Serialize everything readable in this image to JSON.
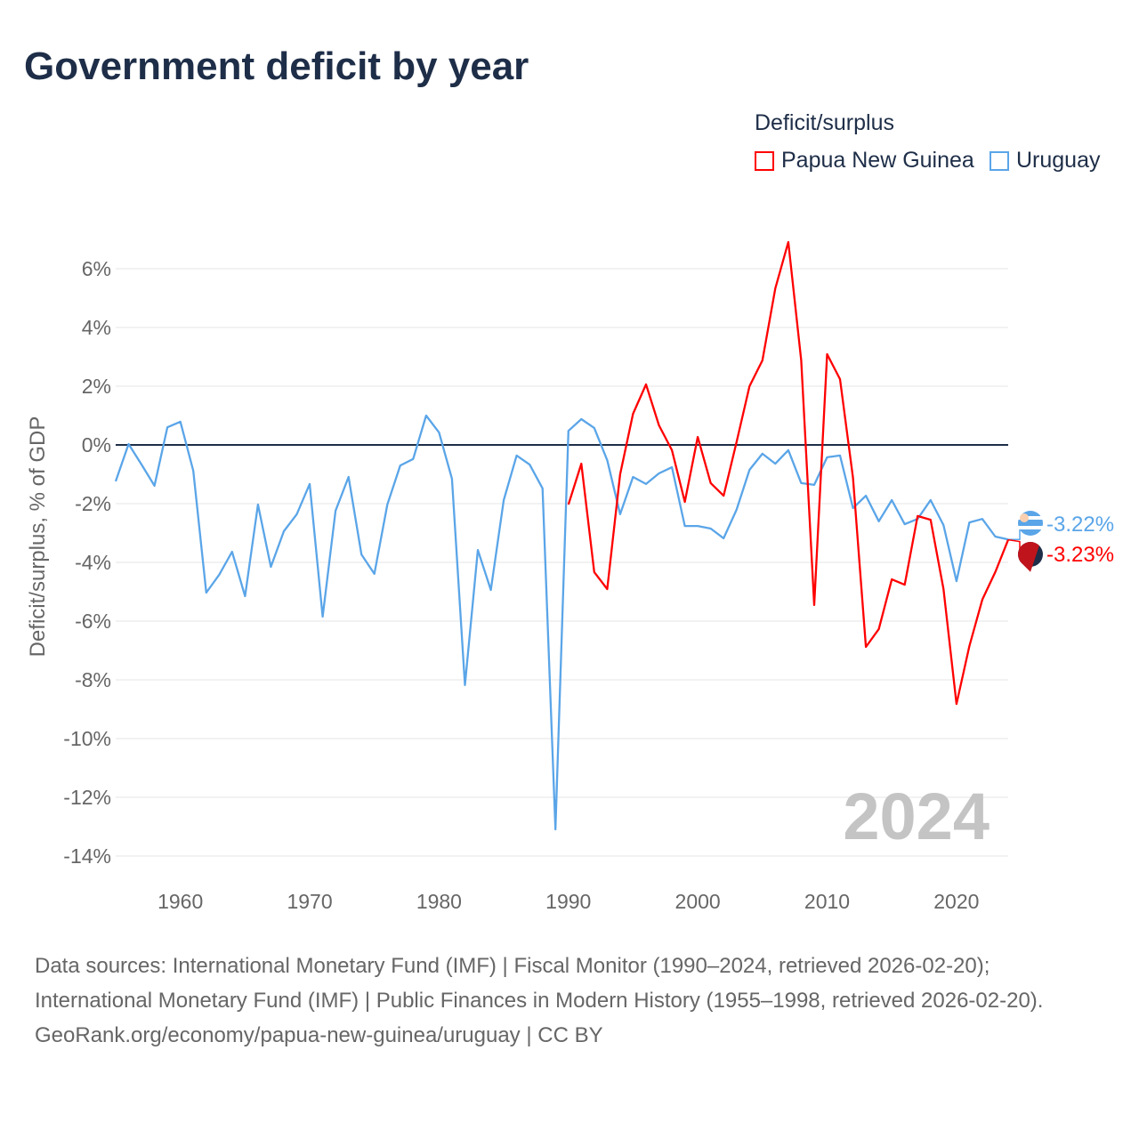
{
  "title": "Government deficit by year",
  "legend": {
    "title": "Deficit/surplus",
    "items": [
      "Papua New Guinea",
      "Uruguay"
    ]
  },
  "year_label": "2024",
  "end_labels": {
    "uruguay": "-3.22%",
    "png": "-3.23%"
  },
  "footer": {
    "sources": "Data sources: International Monetary Fund (IMF) | Fiscal Monitor (1990–2024, retrieved 2026-02-20); International Monetary Fund (IMF) | Public Finances in Modern History (1955–1998, retrieved 2026-02-20).",
    "credit": "GeoRank.org/economy/papua-new-guinea/uruguay | CC BY"
  },
  "colors": {
    "png": "#ff0000",
    "uruguay": "#5aa5e8",
    "title": "#1e2e48"
  },
  "chart_data": {
    "type": "line",
    "title": "Government deficit by year",
    "xlabel": "",
    "ylabel": "Deficit/surplus, % of GDP",
    "xlim": [
      1955,
      2024
    ],
    "ylim": [
      -14,
      7
    ],
    "xticks": [
      1960,
      1970,
      1980,
      1990,
      2000,
      2010,
      2020
    ],
    "yticks": [
      6,
      4,
      2,
      0,
      -2,
      -4,
      -6,
      -8,
      -10,
      -12,
      -14
    ],
    "ytick_labels": [
      "6%",
      "4%",
      "2%",
      "0%",
      "-2%",
      "-4%",
      "-6%",
      "-8%",
      "-10%",
      "-12%",
      "-14%"
    ],
    "grid": true,
    "legend_position": "top-right",
    "series": [
      {
        "name": "Papua New Guinea",
        "color": "#ff0000",
        "start_year": 1990,
        "values": [
          -2.03,
          -0.64,
          -4.33,
          -4.91,
          -1.0,
          1.06,
          2.06,
          0.67,
          -0.18,
          -1.94,
          0.27,
          -1.3,
          -1.73,
          0.09,
          2.0,
          2.88,
          5.33,
          6.91,
          2.88,
          -5.45,
          3.09,
          2.24,
          -1.12,
          -6.88,
          -6.27,
          -4.58,
          -4.76,
          -2.42,
          -2.55,
          -4.91,
          -8.82,
          -6.85,
          -5.27,
          -4.33,
          -3.23
        ]
      },
      {
        "name": "Uruguay",
        "color": "#5aa5e8",
        "start_year": 1955,
        "values": [
          -1.24,
          0.03,
          -0.67,
          -1.39,
          0.6,
          0.79,
          -0.88,
          -5.03,
          -4.42,
          -3.64,
          -5.15,
          -2.03,
          -4.15,
          -2.94,
          -2.36,
          -1.33,
          -5.85,
          -2.24,
          -1.09,
          -3.73,
          -4.39,
          -2.03,
          -0.7,
          -0.48,
          1.0,
          0.42,
          -1.15,
          -8.18,
          -3.58,
          -4.94,
          -1.88,
          -0.36,
          -0.67,
          -1.48,
          -13.09,
          0.48,
          0.88,
          0.58,
          -0.52,
          -2.36,
          -1.09,
          -1.33,
          -0.97,
          -0.76,
          -2.76,
          -2.76,
          -2.85,
          -3.18,
          -2.21,
          -0.85,
          -0.3,
          -0.64,
          -0.18,
          -1.3,
          -1.36,
          -0.42,
          -0.36,
          -2.15,
          -1.73,
          -2.6,
          -1.88,
          -2.7,
          -2.52,
          -1.88,
          -2.73,
          -4.64,
          -2.64,
          -2.52,
          -3.12,
          -3.22
        ]
      }
    ]
  }
}
